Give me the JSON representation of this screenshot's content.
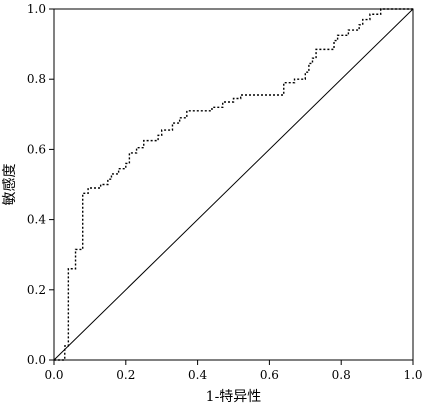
{
  "chart_data": {
    "type": "line",
    "xlabel": "1-特异性",
    "ylabel": "敏感度",
    "xlim": [
      0,
      1
    ],
    "ylim": [
      0,
      1
    ],
    "grid": false,
    "x_ticks": [
      "0.0",
      "0.2",
      "0.4",
      "0.6",
      "0.8",
      "1.0"
    ],
    "y_ticks": [
      "0.0",
      "0.2",
      "0.4",
      "0.6",
      "0.8",
      "1.0"
    ],
    "series": [
      {
        "style": "dotted",
        "color": "#000000",
        "points": [
          [
            0.0,
            0.0
          ],
          [
            0.03,
            0.0
          ],
          [
            0.03,
            0.04
          ],
          [
            0.04,
            0.04
          ],
          [
            0.04,
            0.26
          ],
          [
            0.06,
            0.26
          ],
          [
            0.06,
            0.315
          ],
          [
            0.08,
            0.315
          ],
          [
            0.08,
            0.475
          ],
          [
            0.095,
            0.475
          ],
          [
            0.095,
            0.49
          ],
          [
            0.13,
            0.49
          ],
          [
            0.13,
            0.5
          ],
          [
            0.15,
            0.5
          ],
          [
            0.15,
            0.515
          ],
          [
            0.16,
            0.515
          ],
          [
            0.16,
            0.53
          ],
          [
            0.18,
            0.53
          ],
          [
            0.18,
            0.545
          ],
          [
            0.2,
            0.545
          ],
          [
            0.2,
            0.56
          ],
          [
            0.21,
            0.56
          ],
          [
            0.21,
            0.59
          ],
          [
            0.23,
            0.59
          ],
          [
            0.23,
            0.605
          ],
          [
            0.25,
            0.605
          ],
          [
            0.25,
            0.625
          ],
          [
            0.29,
            0.625
          ],
          [
            0.29,
            0.64
          ],
          [
            0.3,
            0.64
          ],
          [
            0.3,
            0.655
          ],
          [
            0.33,
            0.655
          ],
          [
            0.33,
            0.675
          ],
          [
            0.35,
            0.675
          ],
          [
            0.35,
            0.69
          ],
          [
            0.37,
            0.69
          ],
          [
            0.37,
            0.71
          ],
          [
            0.44,
            0.71
          ],
          [
            0.44,
            0.72
          ],
          [
            0.47,
            0.72
          ],
          [
            0.47,
            0.735
          ],
          [
            0.5,
            0.735
          ],
          [
            0.5,
            0.745
          ],
          [
            0.52,
            0.745
          ],
          [
            0.52,
            0.755
          ],
          [
            0.64,
            0.755
          ],
          [
            0.64,
            0.79
          ],
          [
            0.67,
            0.79
          ],
          [
            0.67,
            0.8
          ],
          [
            0.7,
            0.8
          ],
          [
            0.7,
            0.82
          ],
          [
            0.71,
            0.82
          ],
          [
            0.71,
            0.845
          ],
          [
            0.72,
            0.845
          ],
          [
            0.72,
            0.86
          ],
          [
            0.73,
            0.86
          ],
          [
            0.73,
            0.885
          ],
          [
            0.78,
            0.885
          ],
          [
            0.78,
            0.91
          ],
          [
            0.79,
            0.91
          ],
          [
            0.79,
            0.925
          ],
          [
            0.82,
            0.925
          ],
          [
            0.82,
            0.94
          ],
          [
            0.85,
            0.94
          ],
          [
            0.85,
            0.955
          ],
          [
            0.86,
            0.955
          ],
          [
            0.86,
            0.97
          ],
          [
            0.88,
            0.97
          ],
          [
            0.88,
            0.985
          ],
          [
            0.91,
            0.985
          ],
          [
            0.91,
            1.0
          ],
          [
            1.0,
            1.0
          ]
        ]
      },
      {
        "style": "solid",
        "color": "#000000",
        "points": [
          [
            0.0,
            0.0
          ],
          [
            1.0,
            1.0
          ]
        ]
      }
    ]
  }
}
